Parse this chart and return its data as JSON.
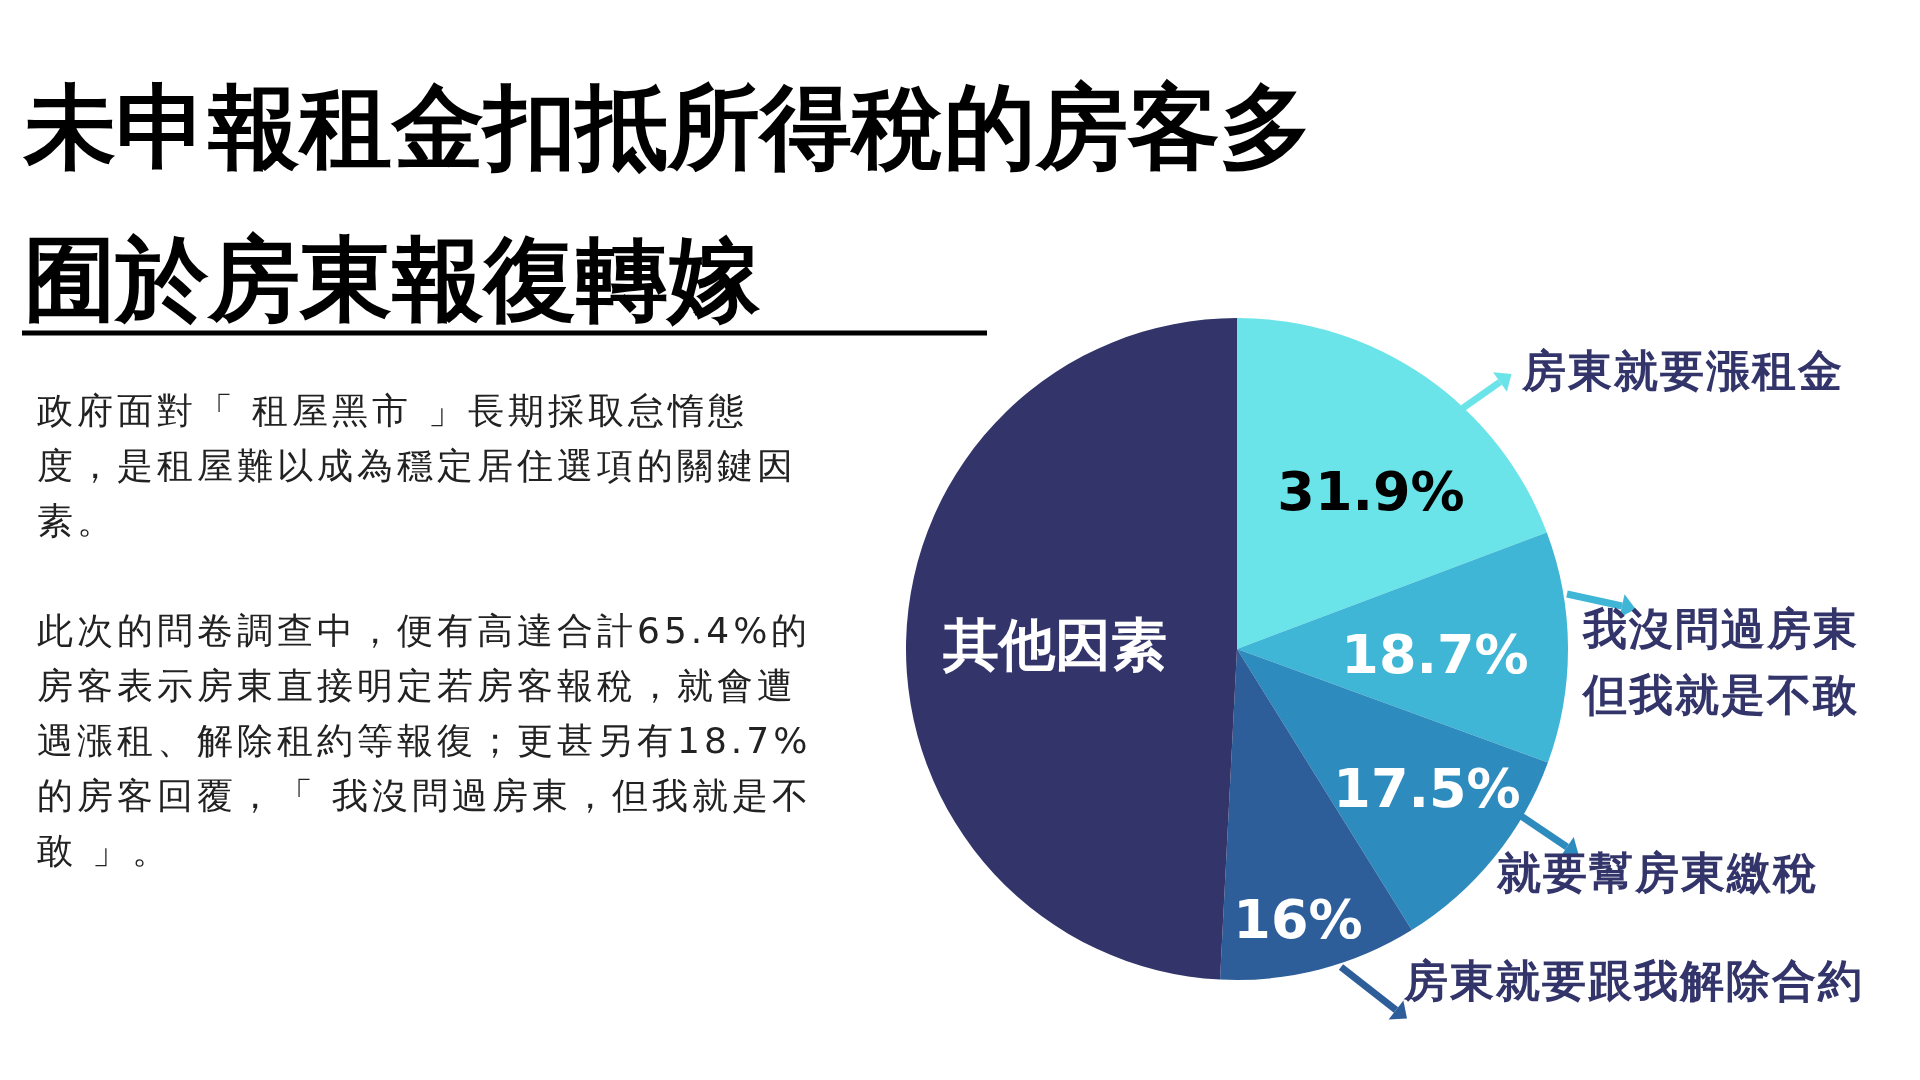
{
  "chart_data": {
    "type": "pie",
    "title": "未申報租金扣抵所得稅的房客多囿於房東報復轉嫁",
    "categories": [
      "房東就要漲租金",
      "我沒問過房東但我就是不敢",
      "就要幫房東繳稅",
      "房東就要跟我解除合約",
      "其他因素"
    ],
    "values": [
      31.9,
      18.7,
      17.5,
      16,
      81.4
    ],
    "value_labels": [
      "31.9%",
      "18.7%",
      "17.5%",
      "16%",
      null
    ],
    "legend": "right",
    "colors": [
      "#6ae4e8",
      "#3fb6d6",
      "#2e8bbd",
      "#2e5e9a",
      "#32346a"
    ],
    "annotations": [
      "政府面對「 租屋黑市 」長期採取怠惰態度，是租屋難以成為穩定居住選項的關鍵因素。",
      "此次的問卷調查中，便有高達合計65.4%的房客表示房東直接明定若房客報稅，就會遭遇漲租、解除租約等報復；更甚另有18.7%的房客回覆，「 我沒問過房東，但我就是不敢 」。"
    ]
  }
}
